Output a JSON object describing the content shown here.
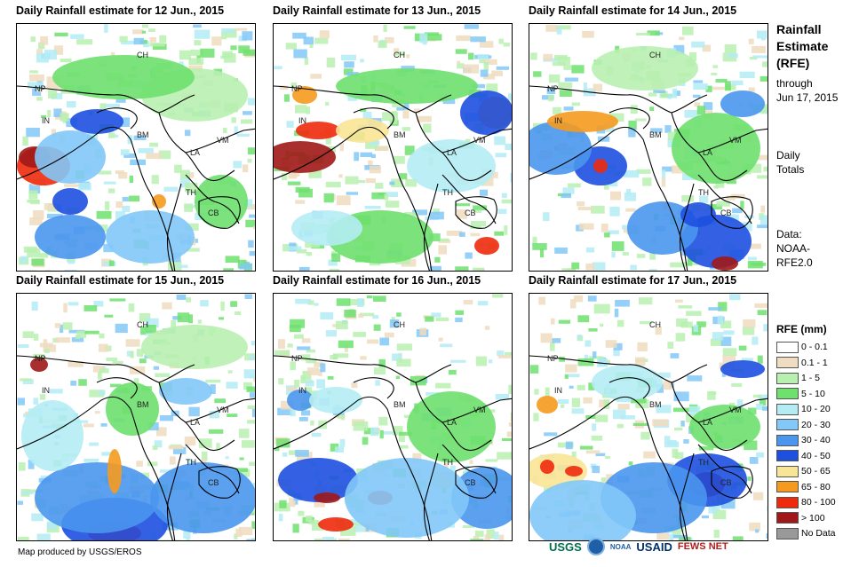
{
  "panels": [
    {
      "title": "Daily Rainfall estimate for 12 Jun., 2015"
    },
    {
      "title": "Daily Rainfall estimate for 13 Jun., 2015"
    },
    {
      "title": "Daily Rainfall estimate for 14 Jun., 2015"
    },
    {
      "title": "Daily Rainfall estimate for 15 Jun., 2015"
    },
    {
      "title": "Daily Rainfall estimate for 16 Jun., 2015"
    },
    {
      "title": "Daily Rainfall estimate for 17 Jun., 2015"
    }
  ],
  "country_labels": [
    "CH",
    "NP",
    "IN",
    "BM",
    "LA",
    "VM",
    "TH",
    "CB"
  ],
  "sidebar": {
    "title_lines": [
      "Rainfall",
      "Estimate",
      "(RFE)"
    ],
    "through_lines": [
      "through",
      "Jun 17, 2015"
    ],
    "daily_lines": [
      "Daily",
      "Totals"
    ],
    "data_lines": [
      "Data:",
      "NOAA-",
      "RFE2.0"
    ]
  },
  "legend": {
    "title": "RFE (mm)",
    "items": [
      {
        "label": "0 - 0.1",
        "color": "#ffffff"
      },
      {
        "label": "0.1 - 1",
        "color": "#f0dcc0"
      },
      {
        "label": "1 - 5",
        "color": "#b8f0b0"
      },
      {
        "label": "5 - 10",
        "color": "#6ee06e"
      },
      {
        "label": "10 - 20",
        "color": "#b4ecf4"
      },
      {
        "label": "20 - 30",
        "color": "#82c8f8"
      },
      {
        "label": "30 - 40",
        "color": "#4a96ee"
      },
      {
        "label": "40 - 50",
        "color": "#1e50e0"
      },
      {
        "label": "50 - 65",
        "color": "#fae496"
      },
      {
        "label": "65 - 80",
        "color": "#f59a1e"
      },
      {
        "label": "80 - 100",
        "color": "#ee2a0c"
      },
      {
        "label": "> 100",
        "color": "#a01818"
      },
      {
        "label": "No Data",
        "color": "#999999"
      }
    ]
  },
  "footer": {
    "credit": "Map produced by USGS/EROS",
    "logos": [
      "USGS",
      "NOAA",
      "USAID",
      "FEWS NET"
    ]
  }
}
